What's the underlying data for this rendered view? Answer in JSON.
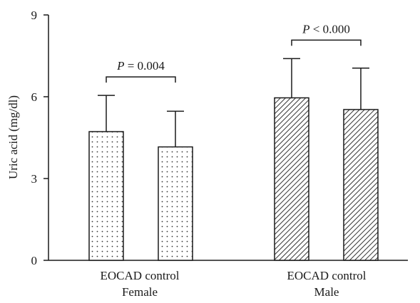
{
  "chart_data": {
    "type": "bar",
    "ylabel": "Uric acid (mg/dl)",
    "ylim": [
      0,
      9
    ],
    "yticks": [
      0,
      3,
      6,
      9
    ],
    "bars": [
      {
        "label": "EOCAD",
        "group": "Female",
        "value": 4.72,
        "error": 1.33,
        "pattern": "dots"
      },
      {
        "label": "control",
        "group": "Female",
        "value": 4.16,
        "error": 1.31,
        "pattern": "dots"
      },
      {
        "label": "EOCAD",
        "group": "Male",
        "value": 5.96,
        "error": 1.44,
        "pattern": "hatch"
      },
      {
        "label": "control",
        "group": "Male",
        "value": 5.53,
        "error": 1.52,
        "pattern": "hatch"
      }
    ],
    "groups": [
      {
        "name": "Female",
        "label_line1": "EOCAD control"
      },
      {
        "name": "Male",
        "label_line1": "EOCAD control"
      }
    ],
    "comparisons": [
      {
        "group": "Female",
        "p_italic": "P",
        "p_rest": " = 0.004"
      },
      {
        "group": "Male",
        "p_italic": "P",
        "p_rest": " < 0.000"
      }
    ]
  },
  "colors": {
    "axis": "#1a1a1a",
    "bar_fill": "#ffffff",
    "pattern_ink": "#333333"
  }
}
